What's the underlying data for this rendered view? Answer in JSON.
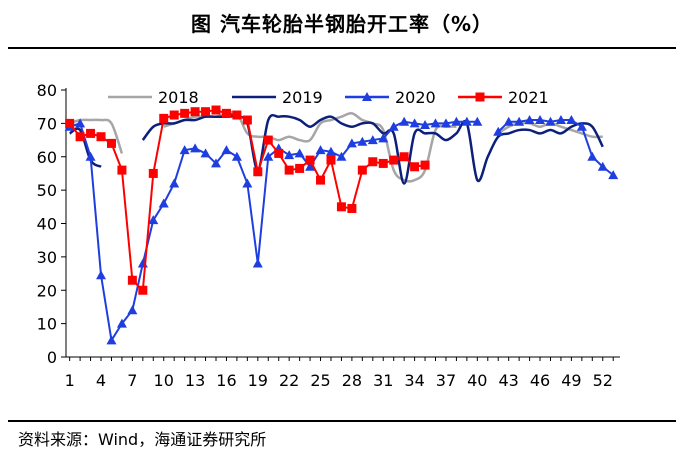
{
  "title": "图  汽车轮胎半钢胎开工率（%）",
  "source": "资料来源：Wind，海通证券研究所",
  "chart_data": {
    "type": "line",
    "title": "图  汽车轮胎半钢胎开工率（%）",
    "xlabel": "",
    "ylabel": "",
    "ylim": [
      0,
      80
    ],
    "yticks": [
      0,
      10,
      20,
      30,
      40,
      50,
      60,
      70,
      80
    ],
    "xlim": [
      1,
      53
    ],
    "xtick_labels": [
      "1",
      "4",
      "7",
      "10",
      "13",
      "16",
      "19",
      "22",
      "25",
      "28",
      "31",
      "34",
      "37",
      "40",
      "43",
      "46",
      "49",
      "52"
    ],
    "xtick_values": [
      1,
      4,
      7,
      10,
      13,
      16,
      19,
      22,
      25,
      28,
      31,
      34,
      37,
      40,
      43,
      46,
      49,
      52
    ],
    "grid": false,
    "legend": "top",
    "series": [
      {
        "name": "2018",
        "color": "#a6a6a6",
        "marker": "none",
        "smooth": true,
        "points": [
          [
            1,
            70
          ],
          [
            2,
            71
          ],
          [
            3,
            71
          ],
          [
            4,
            71
          ],
          [
            5,
            70
          ],
          [
            6,
            61
          ],
          [
            null,
            null
          ],
          [
            10,
            69
          ],
          [
            11,
            70
          ],
          [
            12,
            71
          ],
          [
            13,
            72
          ],
          [
            14,
            72
          ],
          [
            15,
            72
          ],
          [
            16,
            73
          ],
          [
            17,
            73
          ],
          [
            18,
            67
          ],
          [
            19,
            66
          ],
          [
            20,
            66
          ],
          [
            21,
            65
          ],
          [
            22,
            66
          ],
          [
            23,
            65
          ],
          [
            24,
            65
          ],
          [
            25,
            70
          ],
          [
            26,
            71
          ],
          [
            27,
            72
          ],
          [
            28,
            73
          ],
          [
            29,
            71
          ],
          [
            30,
            70
          ],
          [
            31,
            68
          ],
          [
            32,
            56
          ],
          [
            33,
            53
          ],
          [
            34,
            53
          ],
          [
            35,
            56
          ],
          [
            36,
            68
          ],
          [
            37,
            69
          ],
          [
            38,
            69
          ],
          [
            null,
            null
          ],
          [
            42,
            67
          ],
          [
            43,
            69
          ],
          [
            44,
            70
          ],
          [
            45,
            70
          ],
          [
            46,
            69
          ],
          [
            47,
            70
          ],
          [
            48,
            69
          ],
          [
            49,
            68
          ],
          [
            50,
            67
          ],
          [
            51,
            66
          ],
          [
            52,
            66
          ]
        ]
      },
      {
        "name": "2019",
        "color": "#0c1f7a",
        "marker": "none",
        "smooth": true,
        "points": [
          [
            1,
            67
          ],
          [
            2,
            68
          ],
          [
            3,
            59
          ],
          [
            4,
            57
          ],
          [
            null,
            null
          ],
          [
            8,
            65
          ],
          [
            9,
            69
          ],
          [
            10,
            70
          ],
          [
            11,
            70
          ],
          [
            12,
            71
          ],
          [
            13,
            71
          ],
          [
            14,
            72
          ],
          [
            15,
            72
          ],
          [
            16,
            72
          ],
          [
            17,
            72
          ],
          [
            18,
            70
          ],
          [
            19,
            56
          ],
          [
            20,
            71
          ],
          [
            21,
            72
          ],
          [
            22,
            72
          ],
          [
            23,
            71
          ],
          [
            24,
            69
          ],
          [
            25,
            71
          ],
          [
            26,
            72
          ],
          [
            27,
            70
          ],
          [
            28,
            69
          ],
          [
            29,
            70
          ],
          [
            30,
            70
          ],
          [
            31,
            67
          ],
          [
            32,
            67
          ],
          [
            33,
            52
          ],
          [
            34,
            67
          ],
          [
            35,
            67
          ],
          [
            36,
            67
          ],
          [
            37,
            65
          ],
          [
            38,
            67
          ],
          [
            39,
            70
          ],
          [
            40,
            53
          ],
          [
            41,
            60
          ],
          [
            42,
            66
          ],
          [
            43,
            67
          ],
          [
            44,
            68
          ],
          [
            45,
            68
          ],
          [
            46,
            67
          ],
          [
            47,
            68
          ],
          [
            48,
            67
          ],
          [
            49,
            69
          ],
          [
            50,
            70
          ],
          [
            51,
            69
          ],
          [
            52,
            63
          ]
        ]
      },
      {
        "name": "2020",
        "color": "#1f3ee0",
        "marker": "triangle",
        "smooth": false,
        "points": [
          [
            1,
            69
          ],
          [
            2,
            70
          ],
          [
            3,
            60
          ],
          [
            4,
            24.5
          ],
          [
            5,
            5
          ],
          [
            6,
            10
          ],
          [
            7,
            14
          ],
          [
            8,
            28
          ],
          [
            9,
            41
          ],
          [
            10,
            46
          ],
          [
            11,
            52
          ],
          [
            12,
            62
          ],
          [
            13,
            62.5
          ],
          [
            14,
            61
          ],
          [
            15,
            58
          ],
          [
            16,
            62
          ],
          [
            17,
            60
          ],
          [
            18,
            52
          ],
          [
            19,
            28
          ],
          [
            20,
            60
          ],
          [
            21,
            62.5
          ],
          [
            22,
            60.5
          ],
          [
            23,
            61
          ],
          [
            24,
            57
          ],
          [
            25,
            62
          ],
          [
            26,
            61.5
          ],
          [
            27,
            60
          ],
          [
            28,
            64
          ],
          [
            29,
            64.5
          ],
          [
            30,
            65
          ],
          [
            31,
            65.5
          ],
          [
            32,
            69
          ],
          [
            33,
            70.5
          ],
          [
            34,
            70
          ],
          [
            35,
            69.5
          ],
          [
            36,
            70
          ],
          [
            37,
            70
          ],
          [
            38,
            70.5
          ],
          [
            39,
            70.5
          ],
          [
            40,
            70.5
          ],
          [
            null,
            null
          ],
          [
            42,
            67.5
          ],
          [
            43,
            70.5
          ],
          [
            44,
            70.5
          ],
          [
            45,
            71
          ],
          [
            46,
            71
          ],
          [
            47,
            70.5
          ],
          [
            48,
            71
          ],
          [
            49,
            71
          ],
          [
            50,
            69
          ],
          [
            51,
            60
          ],
          [
            52,
            57
          ],
          [
            53,
            54.5
          ]
        ]
      },
      {
        "name": "2021",
        "color": "#ff0000",
        "marker": "square",
        "smooth": false,
        "points": [
          [
            1,
            70
          ],
          [
            2,
            66
          ],
          [
            3,
            67
          ],
          [
            4,
            66
          ],
          [
            5,
            64
          ],
          [
            6,
            56
          ],
          [
            7,
            23
          ],
          [
            8,
            20
          ],
          [
            9,
            55
          ],
          [
            10,
            71.5
          ],
          [
            11,
            72.5
          ],
          [
            12,
            73
          ],
          [
            13,
            73.5
          ],
          [
            14,
            73.5
          ],
          [
            15,
            74
          ],
          [
            16,
            73
          ],
          [
            17,
            72.5
          ],
          [
            18,
            71
          ],
          [
            19,
            55.5
          ],
          [
            20,
            65
          ],
          [
            21,
            61
          ],
          [
            22,
            56
          ],
          [
            23,
            56.5
          ],
          [
            24,
            59
          ],
          [
            25,
            53
          ],
          [
            26,
            59
          ],
          [
            27,
            45
          ],
          [
            28,
            44.5
          ],
          [
            29,
            56
          ],
          [
            30,
            58.5
          ],
          [
            31,
            58
          ],
          [
            32,
            59
          ],
          [
            33,
            60
          ],
          [
            34,
            57
          ],
          [
            35,
            57.5
          ]
        ]
      }
    ]
  }
}
